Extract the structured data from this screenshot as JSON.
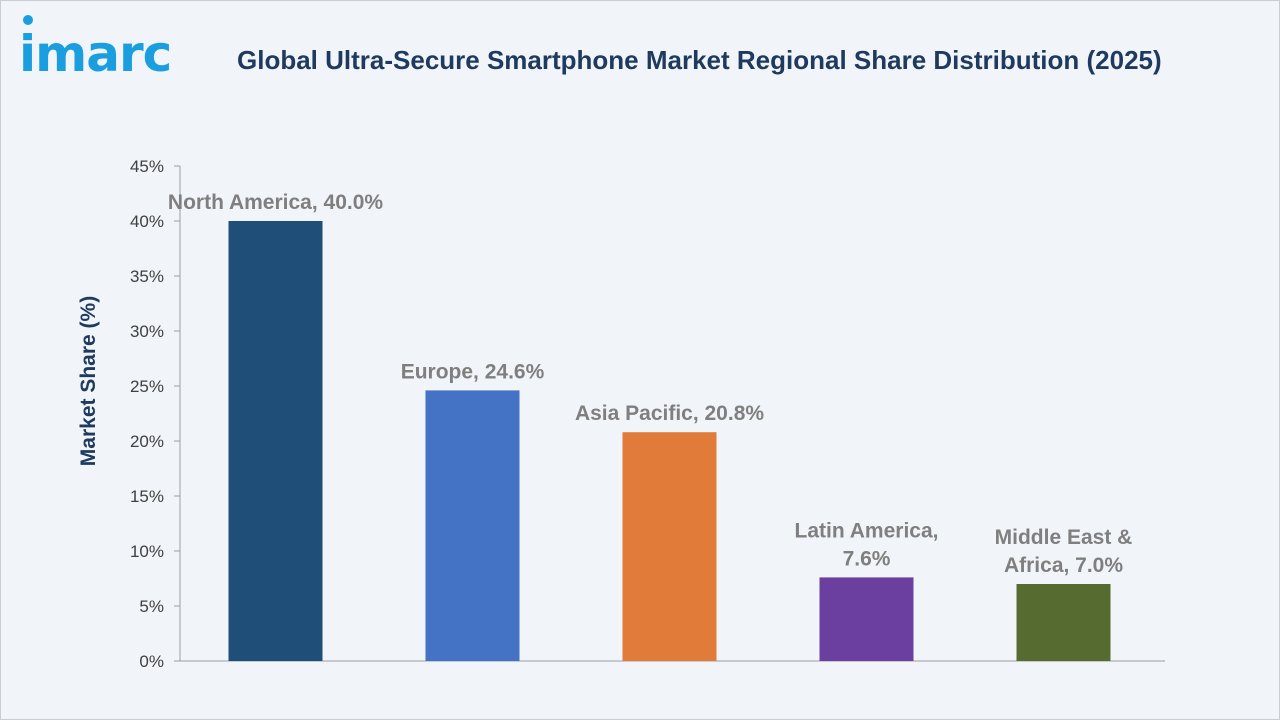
{
  "logo": {
    "text": "imarc"
  },
  "chart_data": {
    "type": "bar",
    "title": "Global Ultra-Secure Smartphone Market Regional Share Distribution (2025)",
    "xlabel": "",
    "ylabel": "Market Share (%)",
    "ylim": [
      0,
      45
    ],
    "yticks": [
      "0%",
      "5%",
      "10%",
      "15%",
      "20%",
      "25%",
      "30%",
      "35%",
      "40%",
      "45%"
    ],
    "grid": false,
    "categories": [
      "North America",
      "Europe",
      "Asia Pacific",
      "Latin America",
      "Middle East & Africa"
    ],
    "values": [
      40.0,
      24.6,
      20.8,
      7.6,
      7.0
    ],
    "data_labels": [
      [
        "North America, 40.0%"
      ],
      [
        "Europe, 24.6%"
      ],
      [
        "Asia Pacific, 20.8%"
      ],
      [
        "Latin America,",
        "7.6%"
      ],
      [
        "Middle East &",
        "Africa, 7.0%"
      ]
    ],
    "colors": [
      "#1f4e79",
      "#4472c4",
      "#e07b39",
      "#6b3fa0",
      "#556b2f"
    ]
  }
}
